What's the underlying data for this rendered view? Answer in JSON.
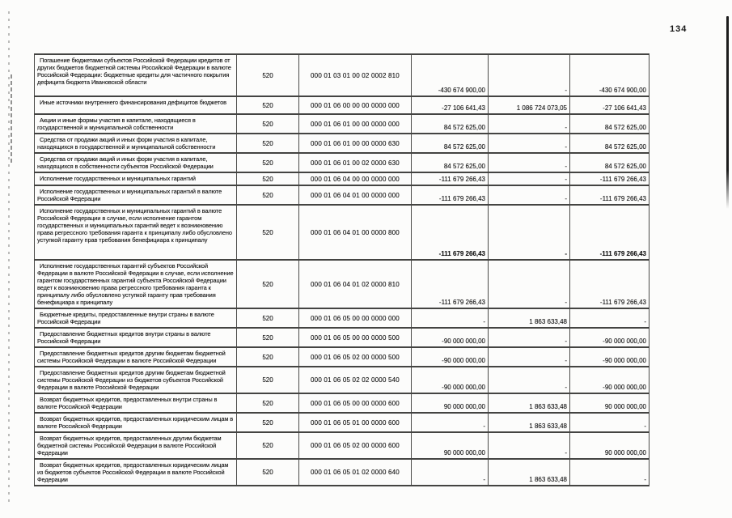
{
  "page": {
    "number": "134"
  },
  "table": {
    "rows": [
      {
        "desc": "Погашение бюджетами субъектов Российской Федерации кредитов от других бюджетов бюджетной системы Российской Федерации в валюте Российской Федерации: бюджетные кредиты для частичного покрытия дефицита бюджета Ивановской области",
        "code": "520",
        "kbk": "000 01 03 01 00 02 0002 810",
        "a1": "-430 674 900,00",
        "a2": "-",
        "a3": "-430 674 900,00",
        "bold": false
      },
      {
        "desc": "Иные источники внутреннего финансирования дефицитов бюджетов",
        "code": "520",
        "kbk": "000 01 06 00 00 00 0000 000",
        "a1": "-27 106 641,43",
        "a2": "1 086 724 073,05",
        "a3": "-27 106 641,43",
        "bold": false
      },
      {
        "desc": "Акции и иные формы участия в капитале, находящиеся в государственной и муниципальной собственности",
        "code": "520",
        "kbk": "000 01 06 01 00 00 0000 000",
        "a1": "84 572 625,00",
        "a2": "-",
        "a3": "84 572 625,00",
        "bold": false
      },
      {
        "desc": "Средства от продажи акций и иных форм участия в капитале, находящихся в государственной и муниципальной собственности",
        "code": "520",
        "kbk": "000 01 06 01 00 00 0000 630",
        "a1": "84 572 625,00",
        "a2": "-",
        "a3": "84 572 625,00",
        "bold": false
      },
      {
        "desc": "Средства от продажи акций и иных форм участия в капитале, находящихся в собственности субъектов Российской Федерации",
        "code": "520",
        "kbk": "000 01 06 01 00 02 0000 630",
        "a1": "84 572 625,00",
        "a2": "-",
        "a3": "84 572 625,00",
        "bold": false
      },
      {
        "desc": "Исполнение государственных и муниципальных гарантий",
        "code": "520",
        "kbk": "000 01 06 04 00 00 0000 000",
        "a1": "-111 679 266,43",
        "a2": "-",
        "a3": "-111 679 266,43",
        "bold": false
      },
      {
        "desc": "Исполнение государственных и муниципальных гарантий в валюте Российской Федерации",
        "code": "520",
        "kbk": "000 01 06 04 01 00 0000 000",
        "a1": "-111 679 266,43",
        "a2": "-",
        "a3": "-111 679 266,43",
        "bold": false
      },
      {
        "desc": "Исполнение государственных и муниципальных гарантий в валюте Российской Федерации в случае, если исполнение гарантом государственных и муниципальных гарантий ведет к возникновению права регрессного требования гаранта к принципалу либо обусловлено уступкой гаранту прав требования бенефициара к принципалу",
        "code": "520",
        "kbk": "000 01 06 04 01 00 0000 800",
        "a1": "-111 679 266,43",
        "a2": "-",
        "a3": "-111 679 266,43",
        "bold": true
      },
      {
        "desc": "Исполнение государственных гарантий субъектов Российской Федерации в валюте Российской Федерации в случае, если исполнение гарантом государственных гарантий субъекта Российской Федерации ведет к возникновению права регрессного требования гаранта к принципалу либо обусловлено уступкой гаранту прав требования бенефициара к принципалу",
        "code": "520",
        "kbk": "000 01 06 04 01 02 0000 810",
        "a1": "-111 679 266,43",
        "a2": "-",
        "a3": "-111 679 266,43",
        "bold": false
      },
      {
        "desc": "Бюджетные кредиты, предоставленные внутри страны в валюте Российской Федерации",
        "code": "520",
        "kbk": "000 01 06 05 00 00 0000 000",
        "a1": "-",
        "a2": "1 863 633,48",
        "a3": "-",
        "bold": false
      },
      {
        "desc": "Предоставление бюджетных кредитов внутри страны в валюте Российской Федерации",
        "code": "520",
        "kbk": "000 01 06 05 00 00 0000 500",
        "a1": "-90 000 000,00",
        "a2": "-",
        "a3": "-90 000 000,00",
        "bold": false
      },
      {
        "desc": "Предоставление бюджетных кредитов другим бюджетам бюджетной системы Российской Федерации в валюте Российской Федерации",
        "code": "520",
        "kbk": "000 01 06 05 02 00 0000 500",
        "a1": "-90 000 000,00",
        "a2": "-",
        "a3": "-90 000 000,00",
        "bold": false
      },
      {
        "desc": "Предоставление бюджетных кредитов другим бюджетам бюджетной системы Российской Федерации из бюджетов субъектов Российской Федерации в валюте Российской Федерации",
        "code": "520",
        "kbk": "000 01 06 05 02 02 0000 540",
        "a1": "-90 000 000,00",
        "a2": "-",
        "a3": "-90 000 000,00",
        "bold": false
      },
      {
        "desc": "Возврат бюджетных кредитов, предоставленных внутри страны в валюте Российской Федерации",
        "code": "520",
        "kbk": "000 01 06 05 00 00 0000 600",
        "a1": "90 000 000,00",
        "a2": "1 863 633,48",
        "a3": "90 000 000,00",
        "bold": false
      },
      {
        "desc": "Возврат бюджетных кредитов, предоставленных юридическим лицам  в валюте Российской Федерации",
        "code": "520",
        "kbk": "000 01 06 05 01 00 0000 600",
        "a1": "-",
        "a2": "1 863 633,48",
        "a3": "-",
        "bold": false
      },
      {
        "desc": "Возврат бюджетных кредитов, предоставленных другим бюджетам бюджетной системы Российской Федерации  в валюте Российской Федерации",
        "code": "520",
        "kbk": "000 01 06 05 02 00 0000 600",
        "a1": "90 000 000,00",
        "a2": "-",
        "a3": "90 000 000,00",
        "bold": false
      },
      {
        "desc": "Возврат бюджетных кредитов, предоставленных юридическим лицам из бюджетов субъектов Российской Федерации в валюте Российской Федерации",
        "code": "520",
        "kbk": "000 01 06 05 01 02 0000 640",
        "a1": "-",
        "a2": "1 863 633,48",
        "a3": "-",
        "bold": false
      }
    ]
  }
}
